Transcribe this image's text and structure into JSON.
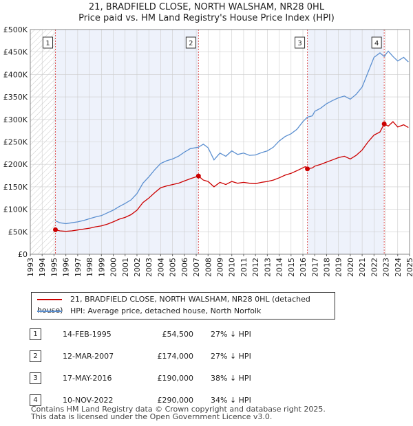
{
  "title_line1": "21, BRADFIELD CLOSE, NORTH WALSHAM, NR28 0HL",
  "title_line2": "Price paid vs. HM Land Registry's House Price Index (HPI)",
  "colors": {
    "property": "#cc0000",
    "hpi": "#5b8fd0",
    "shade": "#eef2fb",
    "vline": "#e05555",
    "grid": "#cccccc"
  },
  "legend": {
    "property": "21, BRADFIELD CLOSE, NORTH WALSHAM, NR28 0HL (detached house)",
    "hpi": "HPI: Average price, detached house, North Norfolk"
  },
  "sales": [
    {
      "num": "1",
      "date": "14-FEB-1995",
      "price": "£54,500",
      "hpi": "27% ↓ HPI"
    },
    {
      "num": "2",
      "date": "12-MAR-2007",
      "price": "£174,000",
      "hpi": "27% ↓ HPI"
    },
    {
      "num": "3",
      "date": "17-MAY-2016",
      "price": "£190,000",
      "hpi": "38% ↓ HPI"
    },
    {
      "num": "4",
      "date": "10-NOV-2022",
      "price": "£290,000",
      "hpi": "34% ↓ HPI"
    }
  ],
  "footer": {
    "line1": "Contains HM Land Registry data © Crown copyright and database right 2025.",
    "line2": "This data is licensed under the Open Government Licence v3.0."
  },
  "chart_data": {
    "type": "line",
    "xlim": [
      1993,
      2025
    ],
    "ylim": [
      0,
      500000
    ],
    "ytick_labels": [
      "£0",
      "£50K",
      "£100K",
      "£150K",
      "£200K",
      "£250K",
      "£300K",
      "£350K",
      "£400K",
      "£450K",
      "£500K"
    ],
    "ytick_values": [
      0,
      50000,
      100000,
      150000,
      200000,
      250000,
      300000,
      350000,
      400000,
      450000,
      500000
    ],
    "xtick_labels": [
      "1993",
      "1994",
      "1995",
      "1996",
      "1997",
      "1998",
      "1999",
      "2000",
      "2001",
      "2002",
      "2003",
      "2004",
      "2005",
      "2006",
      "2007",
      "2008",
      "2009",
      "2010",
      "2011",
      "2012",
      "2013",
      "2014",
      "2015",
      "2016",
      "2017",
      "2018",
      "2019",
      "2020",
      "2021",
      "2022",
      "2023",
      "2024",
      "2025"
    ],
    "hatch_until": 1995.12,
    "sale_points": [
      {
        "label": "1",
        "x": 1995.12,
        "y": 54500
      },
      {
        "label": "2",
        "x": 2007.19,
        "y": 174000
      },
      {
        "label": "3",
        "x": 2016.38,
        "y": 190000
      },
      {
        "label": "4",
        "x": 2022.86,
        "y": 290000
      }
    ],
    "series": [
      {
        "name": "21, BRADFIELD CLOSE, NORTH WALSHAM, NR28 0HL (detached house)",
        "x": [
          1995.12,
          1995.5,
          1996,
          1996.5,
          1997,
          1997.5,
          1998,
          1998.5,
          1999,
          1999.5,
          2000,
          2000.5,
          2001,
          2001.5,
          2002,
          2002.5,
          2003,
          2003.5,
          2004,
          2004.5,
          2005,
          2005.5,
          2006,
          2006.5,
          2007.19,
          2007.6,
          2008,
          2008.5,
          2009,
          2009.5,
          2010,
          2010.5,
          2011,
          2011.5,
          2012,
          2012.5,
          2013,
          2013.5,
          2014,
          2014.5,
          2015,
          2015.5,
          2016.2,
          2016.38,
          2016.8,
          2017,
          2017.5,
          2018,
          2018.5,
          2019,
          2019.5,
          2020,
          2020.5,
          2021,
          2021.5,
          2022,
          2022.5,
          2022.86,
          2023.2,
          2023.6,
          2024,
          2024.5,
          2024.9
        ],
        "y": [
          54500,
          52000,
          51000,
          52000,
          54000,
          56000,
          58000,
          61000,
          63000,
          67000,
          72000,
          78000,
          82000,
          88000,
          98000,
          115000,
          125000,
          137000,
          148000,
          152000,
          155000,
          158000,
          163000,
          168000,
          174000,
          165000,
          162000,
          150000,
          160000,
          155000,
          162000,
          158000,
          160000,
          158000,
          157000,
          160000,
          162000,
          165000,
          170000,
          176000,
          180000,
          186000,
          195000,
          190000,
          192000,
          196000,
          200000,
          205000,
          210000,
          215000,
          218000,
          212000,
          220000,
          232000,
          250000,
          265000,
          272000,
          290000,
          285000,
          295000,
          283000,
          288000,
          282000
        ]
      },
      {
        "name": "HPI: Average price, detached house, North Norfolk",
        "x": [
          1995.12,
          1995.5,
          1996,
          1996.5,
          1997,
          1997.5,
          1998,
          1998.5,
          1999,
          1999.5,
          2000,
          2000.5,
          2001,
          2001.5,
          2002,
          2002.5,
          2003,
          2003.5,
          2004,
          2004.5,
          2005,
          2005.5,
          2006,
          2006.5,
          2007.19,
          2007.6,
          2008,
          2008.5,
          2009,
          2009.5,
          2010,
          2010.5,
          2011,
          2011.5,
          2012,
          2012.5,
          2013,
          2013.5,
          2014,
          2014.5,
          2015,
          2015.5,
          2016,
          2016.38,
          2016.8,
          2017,
          2017.5,
          2018,
          2018.5,
          2019,
          2019.5,
          2020,
          2020.5,
          2021,
          2021.5,
          2022,
          2022.5,
          2022.86,
          2023.2,
          2023.6,
          2024,
          2024.5,
          2024.9
        ],
        "y": [
          74500,
          70000,
          68000,
          70000,
          72000,
          75000,
          79000,
          83000,
          86000,
          92000,
          98000,
          106000,
          113000,
          121000,
          135000,
          158000,
          172000,
          188000,
          202000,
          208000,
          212000,
          218000,
          227000,
          235000,
          238000,
          245000,
          237000,
          210000,
          225000,
          218000,
          230000,
          222000,
          225000,
          220000,
          221000,
          226000,
          230000,
          238000,
          252000,
          262000,
          268000,
          278000,
          295000,
          305000,
          308000,
          318000,
          325000,
          335000,
          342000,
          348000,
          352000,
          345000,
          356000,
          372000,
          405000,
          438000,
          448000,
          440000,
          452000,
          440000,
          430000,
          438000,
          428000
        ]
      }
    ]
  }
}
